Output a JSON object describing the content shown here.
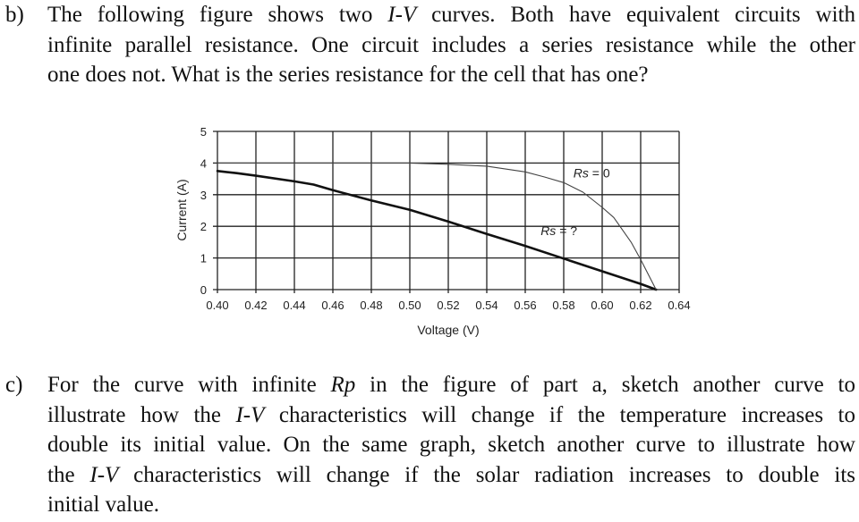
{
  "part_b": {
    "label": "b)",
    "lines": [
      {
        "pre": "The following figure shows two ",
        "em": "I-V",
        "post": " curves. Both have equivalent circuits with"
      },
      {
        "pre": "infinite parallel resistance. One circuit includes a series resistance while the other",
        "em": "",
        "post": ""
      },
      {
        "pre": "one does not. What is the series resistance for the cell that has one?",
        "em": "",
        "post": ""
      }
    ]
  },
  "part_c": {
    "label": "c)",
    "lines": [
      {
        "pre": "For the curve with infinite ",
        "em": "Rp",
        "post": " in the figure of part a, sketch another curve to"
      },
      {
        "pre": "illustrate how the ",
        "em": "I-V",
        "post": " characteristics will change if the temperature increases to"
      },
      {
        "pre": "double its initial value. On the same graph, sketch another curve to illustrate how",
        "em": "",
        "post": ""
      },
      {
        "pre": "the ",
        "em": "I-V",
        "post": " characteristics will change if the solar radiation increases to double its"
      },
      {
        "pre": "initial value.",
        "em": "",
        "post": ""
      }
    ]
  },
  "chart_data": {
    "type": "line",
    "title": "",
    "xlabel": "Voltage (V)",
    "ylabel": "Current (A)",
    "xlim": [
      0.4,
      0.64
    ],
    "ylim": [
      0,
      5
    ],
    "grid": true,
    "x_ticks": [
      "0.40",
      "0.42",
      "0.44",
      "0.46",
      "0.48",
      "0.50",
      "0.52",
      "0.54",
      "0.56",
      "0.58",
      "0.60",
      "0.62",
      "0.64"
    ],
    "y_ticks": [
      "0",
      "1",
      "2",
      "3",
      "4",
      "5"
    ],
    "series": [
      {
        "name": "Rs = ?",
        "style": "thick",
        "color": "#111111",
        "x": [
          0.4,
          0.41,
          0.42,
          0.44,
          0.45,
          0.46,
          0.48,
          0.5,
          0.52,
          0.54,
          0.56,
          0.58,
          0.6,
          0.62,
          0.628
        ],
        "y": [
          3.75,
          3.68,
          3.6,
          3.42,
          3.32,
          3.14,
          2.82,
          2.52,
          2.15,
          1.76,
          1.38,
          0.98,
          0.58,
          0.18,
          0.0
        ]
      },
      {
        "name": "Rs = 0",
        "style": "thin",
        "color": "#444444",
        "x": [
          0.4,
          0.5,
          0.52,
          0.54,
          0.56,
          0.57,
          0.58,
          0.59,
          0.6,
          0.606,
          0.615,
          0.62,
          0.628
        ],
        "y": [
          4.0,
          4.0,
          3.96,
          3.9,
          3.72,
          3.56,
          3.38,
          3.08,
          2.6,
          2.28,
          1.5,
          0.95,
          0.0
        ]
      }
    ],
    "annotations": [
      {
        "text_italic": "Rs",
        "text": " = 0",
        "x": 0.585,
        "y": 3.55
      },
      {
        "text_italic": "Rs",
        "text": " = ?",
        "x": 0.568,
        "y": 1.72
      }
    ]
  }
}
